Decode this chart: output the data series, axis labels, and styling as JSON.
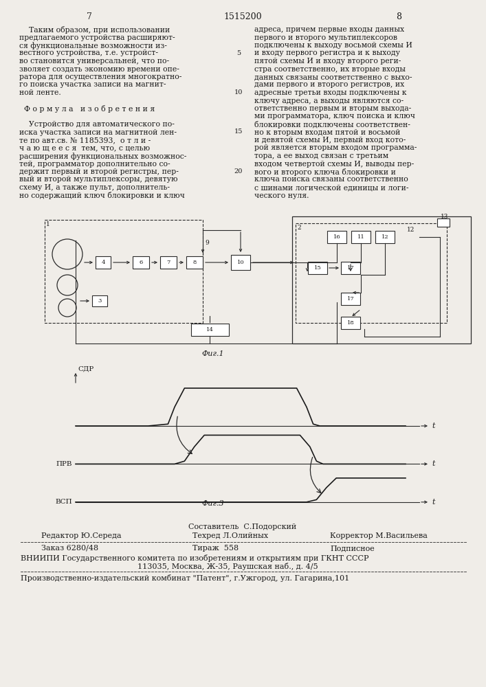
{
  "page_num_left": "7",
  "page_num_center": "1515200",
  "page_num_right": "8",
  "bg_color": "#f0ede8",
  "text_color": "#1a1a1a",
  "line_color": "#2a2a2a",
  "fig1_caption": "Фиг.1",
  "fig3_caption": "Фиг.3",
  "col_left_lines": [
    "    Таким образом, при использовании",
    "предлагаемого устройства расширяют-",
    "ся функциональные возможности из-",
    "вестного устройства, т.е. устройст-",
    "во становится универсальней, что по-",
    "зволяет создать экономию времени опе-",
    "ратора для осуществления многократно-",
    "го поиска участка записи на магнит-",
    "ной ленте.",
    "",
    "  Ф о р м у л а   и з о б р е т е н и я",
    "",
    "    Устройство для автоматического по-",
    "иска участка записи на магнитной лен-",
    "те по авт.св. № 1185393,  о т л и -",
    "ч а ю щ е е с я  тем, что, с целью",
    "расширения функциональных возможнос-",
    "тей, программатор дополнительно со-",
    "держит первый и второй регистры, пер-",
    "вый и второй мультиплексоры, девятую",
    "схему И, а также пульт, дополнитель-",
    "но содержащий ключ блокировки и ключ"
  ],
  "col_right_lines": [
    "адреса, причем первые входы данных",
    "первого и второго мультиплексоров",
    "подключены к выходу восьмой схемы И",
    "и входу первого регистра и к выходу",
    "пятой схемы И и входу второго реги-",
    "стра соответственно, их вторые входы",
    "данных связаны соответственно с выхо-",
    "дами первого и второго регистров, их",
    "адресные третьи входы подключены к",
    "ключу адреса, а выходы являются со-",
    "ответственно первым и вторым выхода-",
    "ми программатора, ключ поиска и ключ",
    "блокировки подключены соответствен-",
    "но к вторым входам пятой и восьмой",
    "и девятой схемы И, первый вход кото-",
    "рой является вторым входом программа-",
    "тора, а ее выход связан с третьим",
    "входом четвертой схемы И, выводы пер-",
    "вого и второго ключа блокировки и",
    "ключа поиска связаны соответственно",
    "с шинами логической единицы и логи-",
    "ческого нуля."
  ],
  "line_numbers": [
    {
      "n": "5",
      "row": 3
    },
    {
      "n": "10",
      "row": 8
    },
    {
      "n": "15",
      "row": 13
    },
    {
      "n": "20",
      "row": 18
    }
  ],
  "footer": {
    "line1": "Составитель  С.Подорский",
    "line2_left": "Редактор Ю.Середа",
    "line2_mid": "Техред Л.Олийных",
    "line2_right": "Корректор М.Васильева",
    "line3_left": "Заказ 6280/48",
    "line3_mid": "Тираж  558",
    "line3_right": "Подписное",
    "line4": "ВНИИПИ Государственного комитета по изобретениям и открытиям при ГКНТ СССР",
    "line5": "113035, Москва, Ж-35, Раушская наб., д. 4/5",
    "line6": "Производственно-издательский комбинат \"Патент\", г.Ужгород, ул. Гагарина,101"
  }
}
